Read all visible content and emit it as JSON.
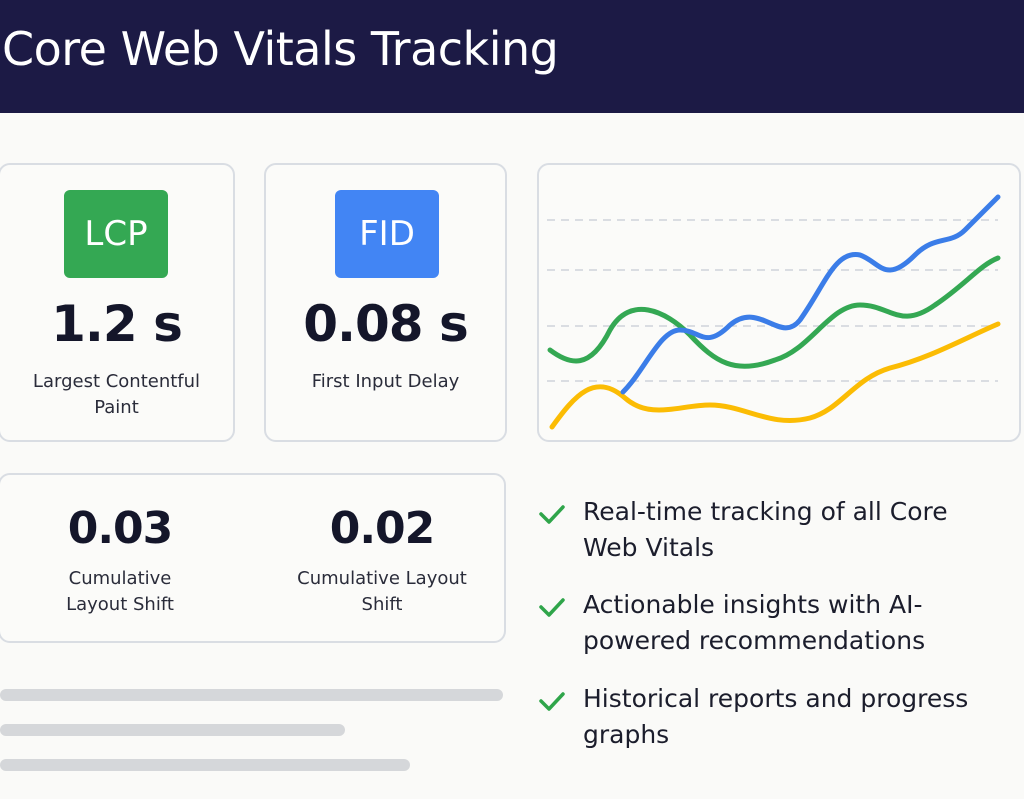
{
  "header": {
    "title": "Core Web Vitals Tracking"
  },
  "metrics": [
    {
      "badge": "LCP",
      "value": "1.2 s",
      "label": "Largest Contentful Paint"
    },
    {
      "badge": "FID",
      "value": "0.08 s",
      "label": "First Input Delay"
    }
  ],
  "layout_shift": [
    {
      "value": "0.03",
      "label": "Cumulative Layout Shift"
    },
    {
      "value": "0.02",
      "label": "Cumulative Layout Shift"
    }
  ],
  "features": [
    "Real-time tracking of all Core Web Vitals",
    "Actionable insights with AI-powered recommendations",
    "Historical reports and progress graphs"
  ]
}
